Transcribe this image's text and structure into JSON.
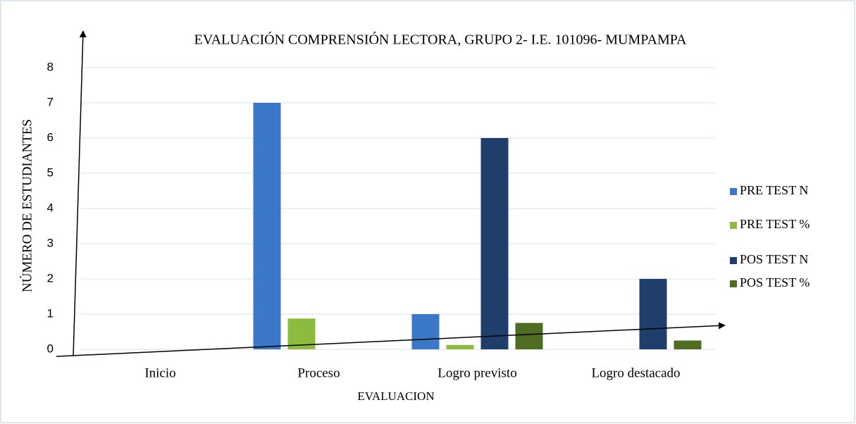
{
  "chart_data": {
    "type": "bar",
    "title": "EVALUACIÓN COMPRENSIÓN LECTORA, GRUPO 2- I.E. 101096- MUMPAMPA",
    "x_label": "EVALUACION",
    "y_label": "NÚMERO DE ESTUDIANTES",
    "categories": [
      "Inicio",
      "Proceso",
      "Logro previsto",
      "Logro destacado"
    ],
    "series": [
      {
        "name": "PRE TEST N",
        "color": "#3b78c8",
        "values": [
          0,
          7,
          1,
          0
        ]
      },
      {
        "name": "PRE TEST %",
        "color": "#8dbb40",
        "values": [
          0,
          0.875,
          0.125,
          0
        ]
      },
      {
        "name": "POS TEST N",
        "color": "#203e6c",
        "values": [
          0,
          0,
          6,
          2
        ]
      },
      {
        "name": "POS TEST %",
        "color": "#4f6d22",
        "values": [
          0,
          0,
          0.75,
          0.25
        ]
      }
    ],
    "ylim": [
      0,
      8
    ],
    "yticks": [
      0,
      1,
      2,
      3,
      4,
      5,
      6,
      7,
      8
    ],
    "grid": true,
    "legend": "right"
  }
}
